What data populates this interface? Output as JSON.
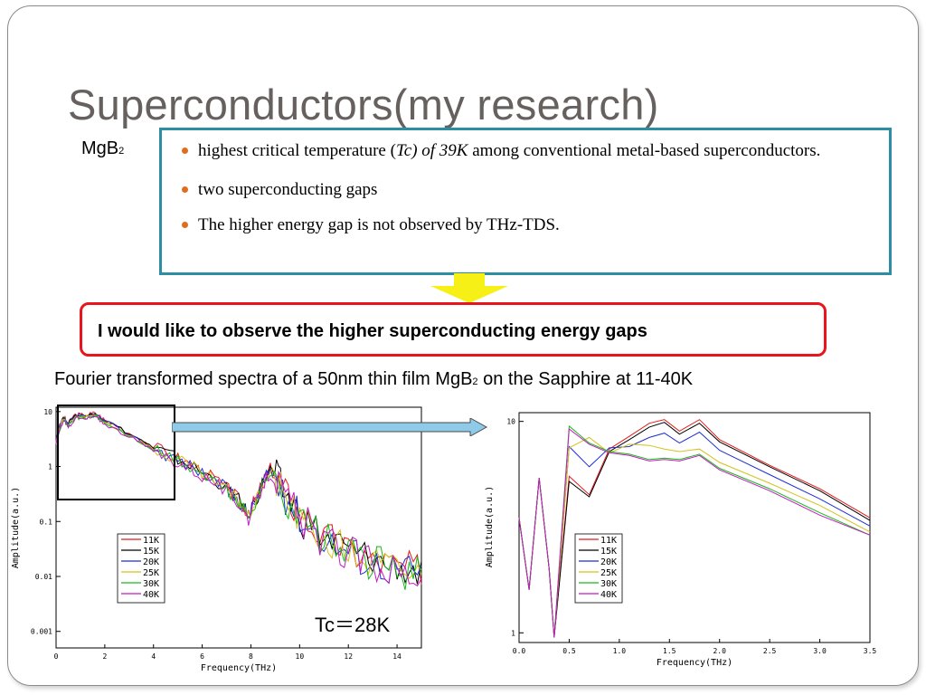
{
  "slide": {
    "title": "Superconductors(my research)",
    "material_label": "MgB",
    "material_subscript": "2"
  },
  "bullets": {
    "b1_text_1": "highest critical temperature (",
    "b1_tc": "Tc) of 39K",
    "b1_text_2": "  among conventional metal-based superconductors.",
    "b2": "two superconducting gaps",
    "b3": "The higher energy gap is not observed by THz-TDS."
  },
  "callout": "I would like to observe the higher superconducting energy gaps",
  "caption": {
    "before": "Fourier transformed spectra of a 50nm thin film MgB",
    "subscript": "2",
    "after": " on the Sapphire at 11-40K"
  },
  "tc_label": "Tc＝28K",
  "colors": {
    "title": "#66615e",
    "bullet_dot": "#e06d1f",
    "blue_border": "#2b8ea2",
    "red_border": "#e8151c",
    "arrow_yellow": "#f7f016",
    "arrow_blue": "#8fcbe8"
  },
  "chart_data": [
    {
      "type": "line",
      "xlabel": "Frequency(THz)",
      "ylabel": "Amplitude(a.u.)",
      "x_ticks": [
        "0",
        "2",
        "4",
        "6",
        "8",
        "10",
        "12",
        "14"
      ],
      "y_ticks": [
        "10",
        "1",
        "0.1",
        "0.01",
        "0.001"
      ],
      "xlim": [
        0,
        15
      ],
      "ylim": [
        0.0005,
        12
      ],
      "y_scale": "log",
      "legend": [
        "11K",
        "15K",
        "20K",
        "25K",
        "30K",
        "40K"
      ],
      "series_colors": [
        "#e41a1c",
        "#000000",
        "#1f2fd6",
        "#d4c21a",
        "#18b818",
        "#c21bc2"
      ],
      "x": [
        0,
        0.3,
        0.5,
        0.8,
        1.2,
        1.6,
        2,
        3,
        4,
        5,
        6,
        7,
        7.5,
        7.9,
        8.3,
        8.8,
        9.3,
        10,
        11,
        12,
        13,
        14,
        15
      ],
      "values": [
        3,
        8,
        6,
        9,
        8.5,
        9.5,
        7,
        4,
        2.2,
        1.4,
        0.8,
        0.4,
        0.25,
        0.13,
        0.3,
        0.9,
        0.35,
        0.12,
        0.05,
        0.03,
        0.02,
        0.015,
        0.012
      ]
    },
    {
      "type": "line",
      "xlabel": "Frequency(THz)",
      "ylabel": "Amplitude(a.u.)",
      "x_ticks": [
        "0.0",
        "0.5",
        "1.0",
        "1.5",
        "2.0",
        "2.5",
        "3.0",
        "3.5"
      ],
      "y_ticks": [
        "10",
        "1"
      ],
      "xlim": [
        0,
        3.5
      ],
      "ylim": [
        0.9,
        11
      ],
      "y_scale": "log",
      "legend": [
        "11K",
        "15K",
        "20K",
        "25K",
        "30K",
        "40K"
      ],
      "series_colors": [
        "#e41a1c",
        "#000000",
        "#1f2fd6",
        "#d4c21a",
        "#18b818",
        "#c21bc2"
      ],
      "x": [
        0,
        0.1,
        0.2,
        0.3,
        0.35,
        0.5,
        0.7,
        0.9,
        1.1,
        1.3,
        1.45,
        1.6,
        1.8,
        2.0,
        2.5,
        3.0,
        3.5
      ],
      "series": [
        {
          "name": "11K",
          "values": [
            3.5,
            1.6,
            5.4,
            2,
            0.95,
            5.5,
            4.5,
            7.4,
            8.5,
            9.8,
            10.2,
            9,
            10.2,
            8.2,
            6.2,
            4.8,
            3.5
          ]
        },
        {
          "name": "15K",
          "values": [
            3.5,
            1.6,
            5.4,
            2,
            0.95,
            5.2,
            4.4,
            7.2,
            8.2,
            9.4,
            9.9,
            8.7,
            9.8,
            8,
            6.1,
            4.7,
            3.4
          ]
        },
        {
          "name": "20K",
          "values": [
            3.5,
            1.6,
            5.4,
            2,
            0.95,
            7.6,
            6.1,
            7.5,
            7.6,
            8.4,
            8.8,
            7.9,
            8.9,
            7.3,
            5.6,
            4.3,
            3.2
          ]
        },
        {
          "name": "25K",
          "values": [
            3.5,
            1.6,
            5.4,
            2,
            0.95,
            7.5,
            8.4,
            7.1,
            7.8,
            7.7,
            7.4,
            7.2,
            7.4,
            6.4,
            5.1,
            4,
            3
          ]
        },
        {
          "name": "30K",
          "values": [
            3.5,
            1.6,
            5.4,
            2,
            0.95,
            9.5,
            7.9,
            7.2,
            7,
            6.6,
            6.7,
            6.6,
            7,
            6,
            4.8,
            3.7,
            2.9
          ]
        },
        {
          "name": "40K",
          "values": [
            3.5,
            1.6,
            5.4,
            2,
            0.95,
            9.2,
            7.8,
            7.1,
            6.9,
            6.5,
            6.6,
            6.5,
            6.9,
            5.9,
            4.7,
            3.6,
            2.9
          ]
        }
      ]
    }
  ]
}
